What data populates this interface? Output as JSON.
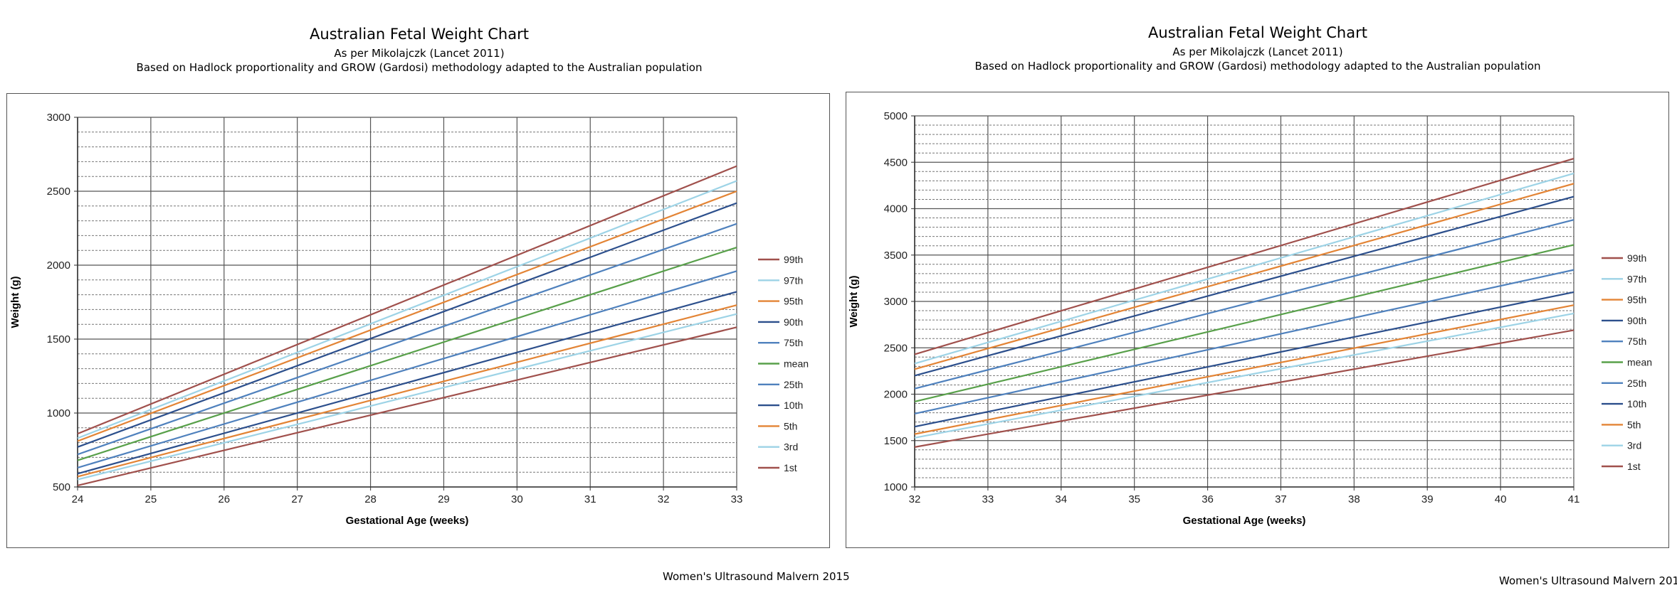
{
  "footer_credit": "Women's Ultrasound Malvern 2015",
  "chart_data": [
    {
      "type": "line",
      "title": "Australian Fetal Weight Chart",
      "subtitle": "As per Mikolajczk (Lancet 2011)",
      "subtitle2": "Based on Hadlock proportionality and GROW (Gardosi) methodology adapted to the Australian population",
      "xlabel": "Gestational Age (weeks)",
      "ylabel": "Weight (g)",
      "xlim": [
        24,
        33
      ],
      "ylim": [
        500,
        3000
      ],
      "xticks": [
        24,
        25,
        26,
        27,
        28,
        29,
        30,
        31,
        32,
        33
      ],
      "yticks": [
        500,
        1000,
        1500,
        2000,
        2500,
        3000
      ],
      "grid": true,
      "legend_position": "right",
      "series": [
        {
          "name": "99th",
          "color": "#a0504c",
          "x": [
            24,
            33
          ],
          "values": [
            860,
            2670
          ]
        },
        {
          "name": "97th",
          "color": "#9dd3e6",
          "x": [
            24,
            33
          ],
          "values": [
            830,
            2570
          ]
        },
        {
          "name": "95th",
          "color": "#e38435",
          "x": [
            24,
            33
          ],
          "values": [
            810,
            2500
          ]
        },
        {
          "name": "90th",
          "color": "#2c4f8c",
          "x": [
            24,
            33
          ],
          "values": [
            770,
            2420
          ]
        },
        {
          "name": "75th",
          "color": "#4f81bd",
          "x": [
            24,
            33
          ],
          "values": [
            720,
            2280
          ]
        },
        {
          "name": "mean",
          "color": "#58a04a",
          "x": [
            24,
            33
          ],
          "values": [
            680,
            2120
          ]
        },
        {
          "name": "25th",
          "color": "#4f81bd",
          "x": [
            24,
            33
          ],
          "values": [
            630,
            1960
          ]
        },
        {
          "name": "10th",
          "color": "#2c4f8c",
          "x": [
            24,
            33
          ],
          "values": [
            590,
            1820
          ]
        },
        {
          "name": "5th",
          "color": "#e38435",
          "x": [
            24,
            33
          ],
          "values": [
            570,
            1730
          ]
        },
        {
          "name": "3rd",
          "color": "#9dd3e6",
          "x": [
            24,
            33
          ],
          "values": [
            550,
            1670
          ]
        },
        {
          "name": "1st",
          "color": "#a0504c",
          "x": [
            24,
            33
          ],
          "values": [
            510,
            1580
          ]
        }
      ]
    },
    {
      "type": "line",
      "title": "Australian Fetal Weight Chart",
      "subtitle": "As per Mikolajczk (Lancet 2011)",
      "subtitle2": "Based on Hadlock proportionality and GROW (Gardosi) methodology adapted to the Australian population",
      "xlabel": "Gestational Age (weeks)",
      "ylabel": "Weight (g)",
      "xlim": [
        32,
        41
      ],
      "ylim": [
        1000,
        5000
      ],
      "xticks": [
        32,
        33,
        34,
        35,
        36,
        37,
        38,
        39,
        40,
        41
      ],
      "yticks": [
        1000,
        1500,
        2000,
        2500,
        3000,
        3500,
        4000,
        4500,
        5000
      ],
      "grid": true,
      "legend_position": "right",
      "series": [
        {
          "name": "99th",
          "color": "#a0504c",
          "x": [
            32,
            41
          ],
          "values": [
            2430,
            4540
          ]
        },
        {
          "name": "97th",
          "color": "#9dd3e6",
          "x": [
            32,
            41
          ],
          "values": [
            2330,
            4380
          ]
        },
        {
          "name": "95th",
          "color": "#e38435",
          "x": [
            32,
            41
          ],
          "values": [
            2270,
            4270
          ]
        },
        {
          "name": "90th",
          "color": "#2c4f8c",
          "x": [
            32,
            41
          ],
          "values": [
            2200,
            4130
          ]
        },
        {
          "name": "75th",
          "color": "#4f81bd",
          "x": [
            32,
            41
          ],
          "values": [
            2060,
            3880
          ]
        },
        {
          "name": "mean",
          "color": "#58a04a",
          "x": [
            32,
            41
          ],
          "values": [
            1920,
            3610
          ]
        },
        {
          "name": "25th",
          "color": "#4f81bd",
          "x": [
            32,
            41
          ],
          "values": [
            1790,
            3340
          ]
        },
        {
          "name": "10th",
          "color": "#2c4f8c",
          "x": [
            32,
            41
          ],
          "values": [
            1650,
            3100
          ]
        },
        {
          "name": "5th",
          "color": "#e38435",
          "x": [
            32,
            41
          ],
          "values": [
            1570,
            2960
          ]
        },
        {
          "name": "3rd",
          "color": "#9dd3e6",
          "x": [
            32,
            41
          ],
          "values": [
            1530,
            2870
          ]
        },
        {
          "name": "1st",
          "color": "#a0504c",
          "x": [
            32,
            41
          ],
          "values": [
            1430,
            2690
          ]
        }
      ]
    }
  ]
}
